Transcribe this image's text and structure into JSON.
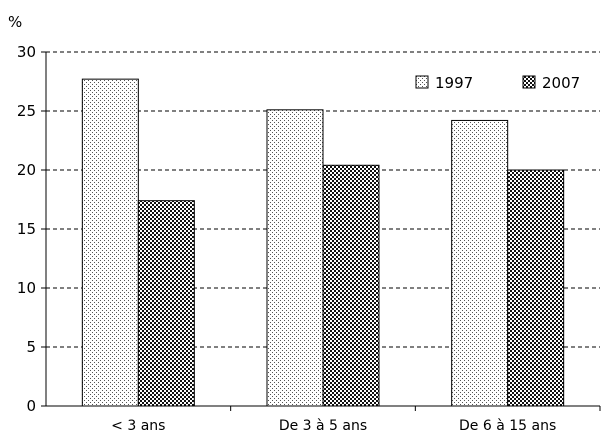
{
  "chart_data": {
    "type": "bar",
    "y_unit_label": "%",
    "categories": [
      "< 3 ans",
      "De 3 à 5 ans",
      "De 6 à 15 ans"
    ],
    "series": [
      {
        "name": "1997",
        "values": [
          27.7,
          25.1,
          24.2
        ],
        "pattern": "light-dots"
      },
      {
        "name": "2007",
        "values": [
          17.4,
          20.4,
          20.0
        ],
        "pattern": "dense-checker"
      }
    ],
    "ylim": [
      0,
      30
    ],
    "y_ticks": [
      0,
      5,
      10,
      15,
      20,
      25,
      30
    ],
    "grid": "dashed horizontal",
    "legend_position": "top-right"
  }
}
